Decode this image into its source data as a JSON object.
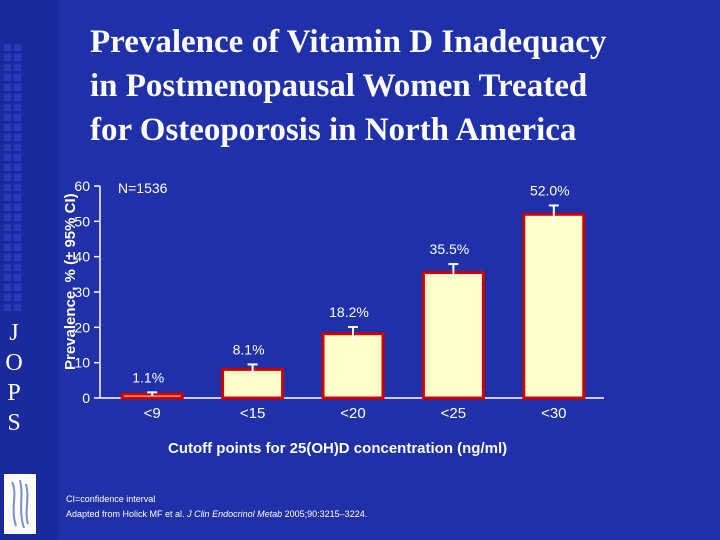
{
  "slide": {
    "title_lines": [
      "Prevalence of Vitamin D Inadequacy",
      "in Postmenopausal Women Treated",
      "for Osteoporosis in North America"
    ],
    "brand_letters": [
      "J",
      "O",
      "P",
      "S"
    ],
    "sample_size": "N=1536",
    "footnote_ci": "CI=confidence interval",
    "footnote_ref_prefix": "Adapted from Holick MF et al.",
    "footnote_journal": "J Clin Endocrinol Metab",
    "footnote_ref_suffix": "2005;90:3215–3224."
  },
  "colors": {
    "background": "#1f30a8",
    "bar_fill": "#ffffcc",
    "bar_border": "#cc0000",
    "error_bar": "#ffffff",
    "text": "#ffffff"
  },
  "chart_data": {
    "type": "bar",
    "title": "Prevalence of Vitamin D Inadequacy in Postmenopausal Women Treated for Osteoporosis in North America",
    "xlabel": "Cutoff points for 25(OH)D concentration (ng/ml)",
    "ylabel": "Prevalence, % (± 95% CI)",
    "categories": [
      "<9",
      "<15",
      "<20",
      "<25",
      "<30"
    ],
    "values": [
      1.1,
      8.1,
      18.2,
      35.5,
      52.0
    ],
    "data_labels": [
      "1.1%",
      "8.1%",
      "18.2%",
      "35.5%",
      "52.0%"
    ],
    "ci_halfwidth": [
      0.5,
      1.4,
      1.9,
      2.4,
      2.5
    ],
    "ylim": [
      0,
      60
    ],
    "yticks": [
      0,
      10,
      20,
      30,
      40,
      50,
      60
    ],
    "grid": false,
    "legend": "none"
  }
}
